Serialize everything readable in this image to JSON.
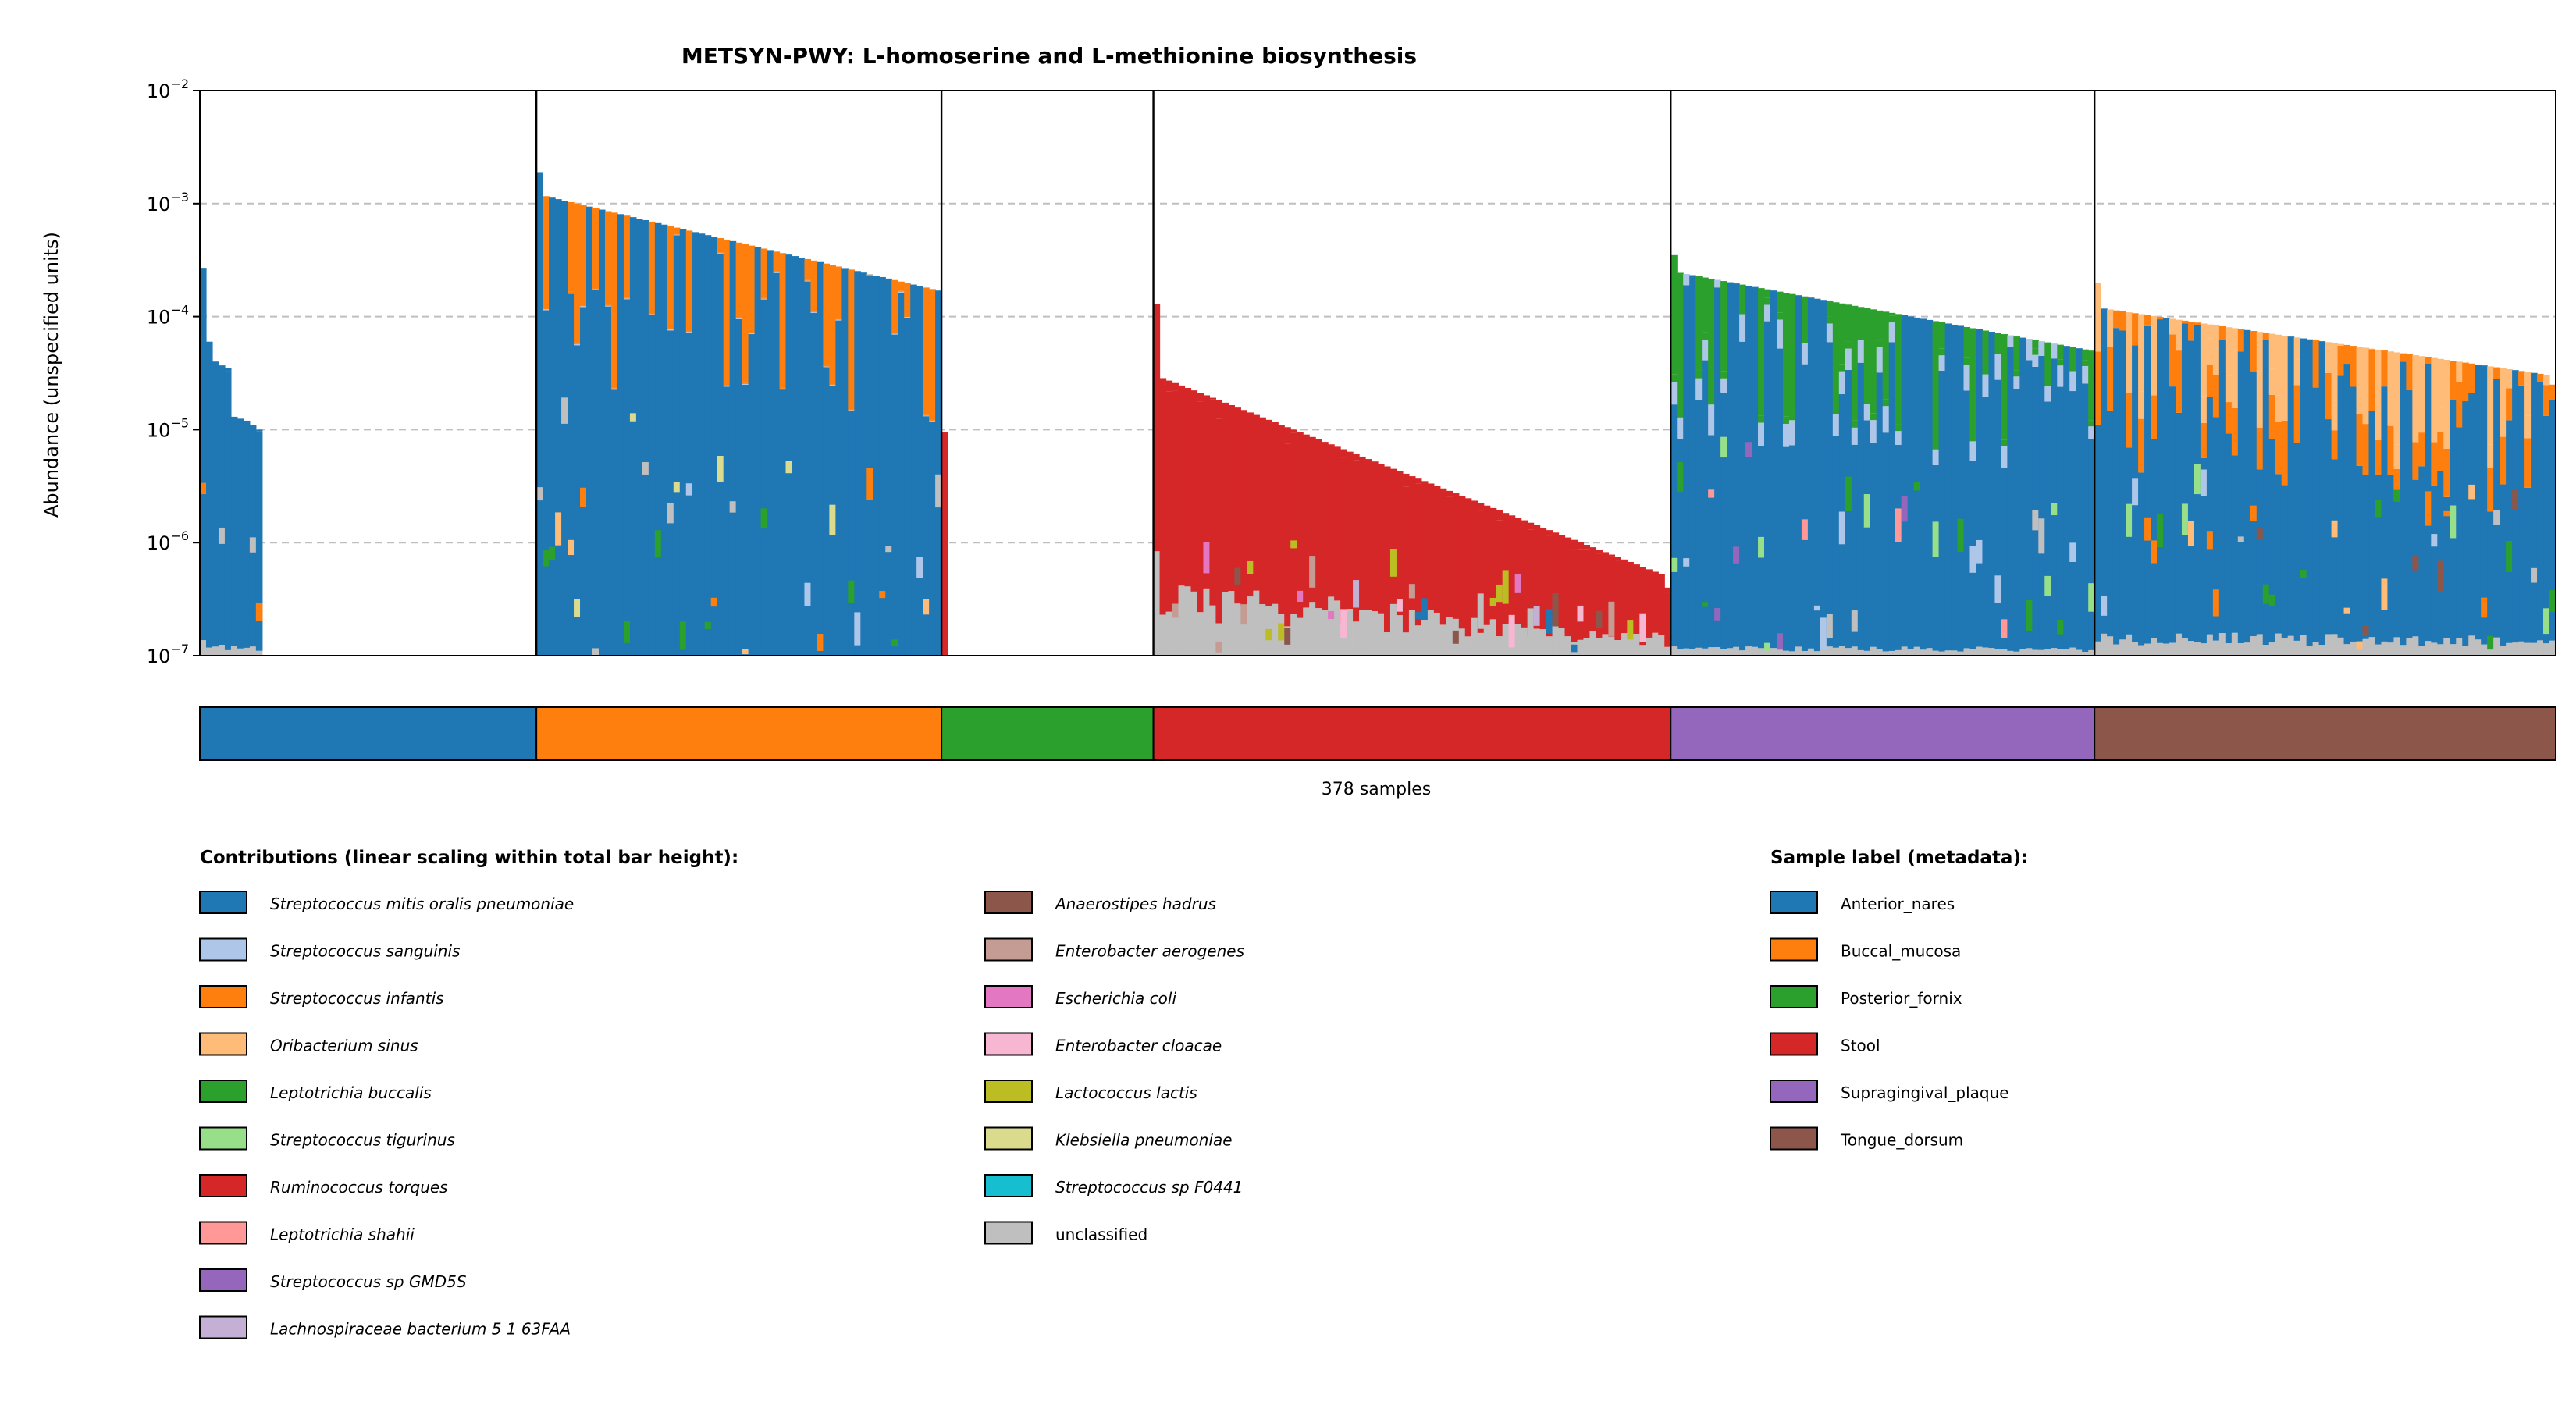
{
  "chart_data": {
    "type": "bar",
    "title": "METSYN-PWY: L-homoserine and L-methionine biosynthesis",
    "ylabel": "Abundance (unspecified units)",
    "yscale": "log",
    "ylim": [
      1e-07,
      0.01
    ],
    "y_ticks": [
      {
        "base": "10",
        "exp": "−2",
        "value": 0.01
      },
      {
        "base": "10",
        "exp": "−3",
        "value": 0.001
      },
      {
        "base": "10",
        "exp": "−4",
        "value": 0.0001
      },
      {
        "base": "10",
        "exp": "−5",
        "value": 1e-05
      },
      {
        "base": "10",
        "exp": "−6",
        "value": 1e-06
      },
      {
        "base": "10",
        "exp": "−7",
        "value": 1e-07
      }
    ],
    "grid": "horizontal dashed",
    "xlabel": "378 samples",
    "group_order": [
      "Anterior_nares",
      "Buccal_mucosa",
      "Posterior_fornix",
      "Stool",
      "Supragingival_plaque",
      "Tongue_dorsum"
    ],
    "group_colors": {
      "Anterior_nares": "#1f77b4",
      "Buccal_mucosa": "#ff7f0e",
      "Posterior_fornix": "#2ca02c",
      "Stool": "#d62728",
      "Supragingival_plaque": "#9467bd",
      "Tongue_dorsum": "#8c564b"
    },
    "groups": [
      {
        "label": "Anterior_nares",
        "n": 54,
        "head_totals": [
          0.00027,
          6e-05,
          4e-05,
          3.7e-05,
          3.5e-05,
          1.3e-05,
          1.25e-05,
          1.2e-05,
          1.1e-05,
          1e-05
        ],
        "rest_total": 0,
        "main": {
          "Streptococcus mitis oralis pneumoniae": 0.97,
          "unclassified": 0.03
        },
        "minor": [
          "Streptococcus infantis",
          "unclassified"
        ]
      },
      {
        "label": "Buccal_mucosa",
        "n": 65,
        "range": [
          0.0012,
          0.00017
        ],
        "first": 0.0019,
        "last": 0.00017,
        "main": {
          "Streptococcus mitis oralis pneumoniae": 0.995,
          "Streptococcus sanguinis": 0.002,
          "Streptococcus infantis": 0.002,
          "unclassified": 0.001
        },
        "minor": [
          "Streptococcus infantis",
          "Streptococcus sanguinis",
          "Oribacterium sinus",
          "Leptotrichia buccalis",
          "Klebsiella pneumoniae",
          "unclassified"
        ]
      },
      {
        "label": "Posterior_fornix",
        "n": 34,
        "head_totals": [
          9.5e-06
        ],
        "rest_total": 0,
        "main": {
          "Ruminococcus torques": 1.0
        },
        "minor": []
      },
      {
        "label": "Stool",
        "n": 83,
        "range": [
          3e-05,
          5e-07
        ],
        "first": 0.00013,
        "last": 4e-07,
        "main": {
          "Ruminococcus torques": 0.8,
          "unclassified": 0.2
        },
        "minor": [
          "unclassified",
          "Anaerostipes hadrus",
          "Escherichia coli",
          "Streptococcus mitis oralis pneumoniae",
          "Enterobacter cloacae",
          "Lactococcus lactis",
          "Enterobacter aerogenes",
          "Lachnospiraceae bacterium 5 1 63FAA"
        ]
      },
      {
        "label": "Supragingival_plaque",
        "n": 68,
        "range": [
          0.00025,
          5e-05
        ],
        "first": 0.00035,
        "last": 5e-05,
        "main": {
          "Streptococcus mitis oralis pneumoniae": 0.9,
          "Streptococcus sanguinis": 0.06,
          "Leptotrichia buccalis": 0.02,
          "unclassified": 0.02
        },
        "minor": [
          "Streptococcus sanguinis",
          "Leptotrichia buccalis",
          "Streptococcus tigurinus",
          "Leptotrichia shahii",
          "Streptococcus sp GMD5S",
          "unclassified"
        ]
      },
      {
        "label": "Tongue_dorsum",
        "n": 74,
        "range": [
          0.00012,
          3e-05
        ],
        "first": 0.0002,
        "last": 2.5e-05,
        "main": {
          "Streptococcus mitis oralis pneumoniae": 0.72,
          "Streptococcus infantis": 0.15,
          "Oribacterium sinus": 0.08,
          "unclassified": 0.05
        },
        "minor": [
          "Streptococcus infantis",
          "Oribacterium sinus",
          "unclassified",
          "Anaerostipes hadrus",
          "Streptococcus tigurinus",
          "Leptotrichia buccalis",
          "Streptococcus sanguinis"
        ]
      }
    ],
    "species_legend_title": "Contributions (linear scaling within total bar height):",
    "species": [
      {
        "name": "Streptococcus mitis oralis pneumoniae",
        "color": "#1f77b4"
      },
      {
        "name": "Streptococcus sanguinis",
        "color": "#aec7e8"
      },
      {
        "name": "Streptococcus infantis",
        "color": "#ff7f0e"
      },
      {
        "name": "Oribacterium sinus",
        "color": "#ffbb78"
      },
      {
        "name": "Leptotrichia buccalis",
        "color": "#2ca02c"
      },
      {
        "name": "Streptococcus tigurinus",
        "color": "#98df8a"
      },
      {
        "name": "Ruminococcus torques",
        "color": "#d62728"
      },
      {
        "name": "Leptotrichia shahii",
        "color": "#ff9896"
      },
      {
        "name": "Streptococcus sp GMD5S",
        "color": "#9467bd"
      },
      {
        "name": "Lachnospiraceae bacterium 5 1 63FAA",
        "color": "#c5b0d5"
      },
      {
        "name": "Anaerostipes hadrus",
        "color": "#8c564b"
      },
      {
        "name": "Enterobacter aerogenes",
        "color": "#c49c94"
      },
      {
        "name": "Escherichia coli",
        "color": "#e377c2"
      },
      {
        "name": "Enterobacter cloacae",
        "color": "#f7b6d2"
      },
      {
        "name": "Lactococcus lactis",
        "color": "#bcbd22"
      },
      {
        "name": "Klebsiella pneumoniae",
        "color": "#dbdb8d"
      },
      {
        "name": "Streptococcus sp F0441",
        "color": "#17becf"
      },
      {
        "name": "unclassified",
        "color": "#bfbfbf"
      }
    ],
    "metadata_legend_title": "Sample label (metadata):"
  }
}
